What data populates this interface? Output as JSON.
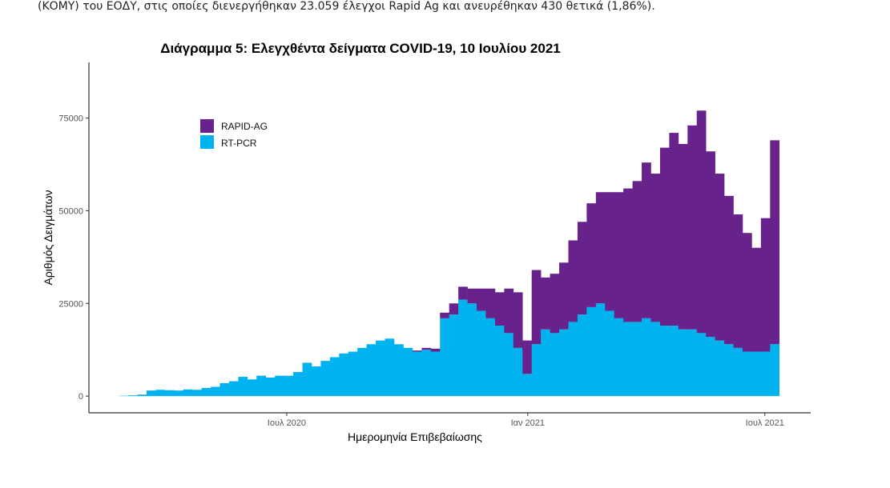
{
  "document": {
    "text_line": "(ΚΟΜΥ) του ΕΟΔΥ, στις οποίες διενεργήθηκαν 23.059 έλεγχοι Rapid Ag και ανευρέθηκαν 430 θετικά (1,86%)."
  },
  "chart_data": {
    "type": "bar",
    "stacked": true,
    "title": "Διάγραμμα 5: Ελεγχθέντα δείγματα COVID-19, 10 Ιουλίου 2021",
    "xlabel": "Ημερομηνία Επιβεβαίωσης",
    "ylabel": "Αριθμός Δειγμάτων",
    "xlim": [
      "2020-02-01",
      "2021-08-05"
    ],
    "ylim": [
      -4500,
      90000
    ],
    "x_ticks": [
      {
        "date": "2020-07-01",
        "label": "Ιουλ 2020"
      },
      {
        "date": "2021-01-01",
        "label": "Ιαν 2021"
      },
      {
        "date": "2021-07-01",
        "label": "Ιουλ 2021"
      }
    ],
    "y_ticks": [
      0,
      25000,
      50000,
      75000
    ],
    "grid": false,
    "legend_position": "top-left",
    "colors": {
      "RAPID-AG": "#68228b",
      "RT-PCR": "#00b2ee"
    },
    "x": [
      "2020-02-24",
      "2020-03-02",
      "2020-03-09",
      "2020-03-16",
      "2020-03-23",
      "2020-03-30",
      "2020-04-06",
      "2020-04-13",
      "2020-04-20",
      "2020-04-27",
      "2020-05-04",
      "2020-05-11",
      "2020-05-18",
      "2020-05-25",
      "2020-06-01",
      "2020-06-08",
      "2020-06-15",
      "2020-06-22",
      "2020-06-29",
      "2020-07-06",
      "2020-07-13",
      "2020-07-20",
      "2020-07-27",
      "2020-08-03",
      "2020-08-10",
      "2020-08-17",
      "2020-08-24",
      "2020-08-31",
      "2020-09-07",
      "2020-09-14",
      "2020-09-21",
      "2020-09-28",
      "2020-10-05",
      "2020-10-12",
      "2020-10-19",
      "2020-10-26",
      "2020-11-02",
      "2020-11-09",
      "2020-11-16",
      "2020-11-23",
      "2020-11-30",
      "2020-12-07",
      "2020-12-14",
      "2020-12-21",
      "2020-12-28",
      "2021-01-04",
      "2021-01-11",
      "2021-01-18",
      "2021-01-25",
      "2021-02-01",
      "2021-02-08",
      "2021-02-15",
      "2021-02-22",
      "2021-03-01",
      "2021-03-08",
      "2021-03-15",
      "2021-03-22",
      "2021-03-29",
      "2021-04-05",
      "2021-04-12",
      "2021-04-19",
      "2021-04-26",
      "2021-05-03",
      "2021-05-10",
      "2021-05-17",
      "2021-05-24",
      "2021-05-31",
      "2021-06-07",
      "2021-06-14",
      "2021-06-21",
      "2021-06-28",
      "2021-07-05"
    ],
    "series": [
      {
        "name": "RT-PCR",
        "values": [
          100,
          200,
          400,
          1500,
          1700,
          1600,
          1500,
          1800,
          1700,
          2200,
          2500,
          3500,
          4000,
          5200,
          4500,
          5500,
          5000,
          5500,
          5500,
          6500,
          9000,
          8000,
          9500,
          10500,
          11500,
          12000,
          13000,
          14000,
          15000,
          15500,
          14000,
          13000,
          12000,
          12500,
          12000,
          21000,
          22000,
          26000,
          25000,
          23000,
          21000,
          19000,
          17000,
          13000,
          6000,
          14000,
          18000,
          17000,
          18000,
          20000,
          22000,
          24000,
          25000,
          23000,
          21000,
          20000,
          20000,
          21000,
          20000,
          19000,
          19000,
          18000,
          18000,
          17000,
          16000,
          15000,
          14000,
          13000,
          12000,
          12000,
          12000,
          14000
        ]
      },
      {
        "name": "RAPID-AG",
        "values": [
          0,
          0,
          0,
          0,
          0,
          0,
          0,
          0,
          0,
          0,
          0,
          0,
          0,
          0,
          0,
          0,
          0,
          0,
          0,
          0,
          0,
          0,
          0,
          0,
          0,
          0,
          0,
          0,
          0,
          0,
          0,
          0,
          300,
          500,
          800,
          1500,
          3000,
          3500,
          4000,
          6000,
          8000,
          9000,
          12000,
          15000,
          9000,
          20000,
          14000,
          16000,
          18000,
          22000,
          25000,
          28000,
          30000,
          32000,
          34000,
          36000,
          38000,
          42000,
          40000,
          48000,
          52000,
          50000,
          55000,
          60000,
          50000,
          45000,
          40000,
          36000,
          32000,
          28000,
          36000,
          55000
        ]
      }
    ]
  }
}
